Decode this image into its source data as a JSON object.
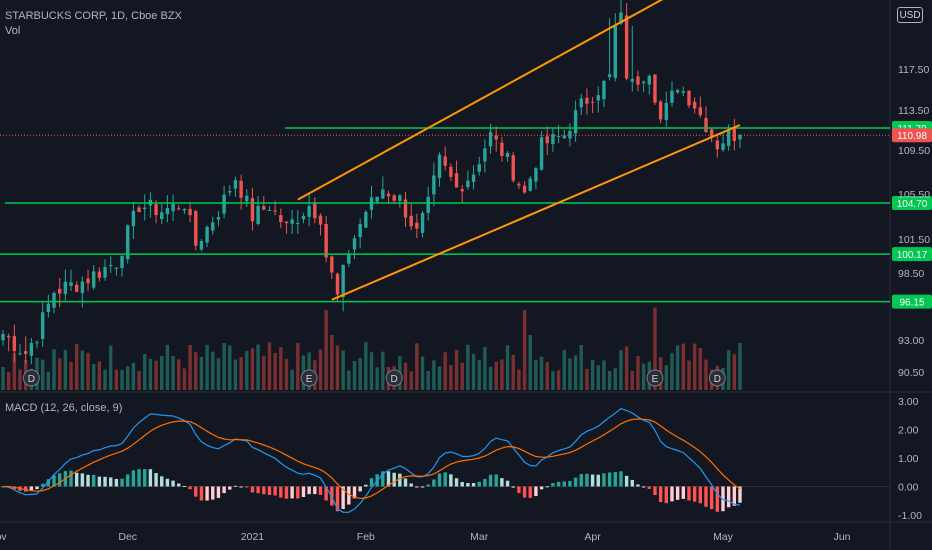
{
  "header": {
    "title": "STARBUCKS CORP, 1D, Cboe BZX",
    "volume_label": "Vol",
    "currency": "USD"
  },
  "macd": {
    "label": "MACD (12, 26, close, 9)",
    "y_ticks": [
      "3.00",
      "2.00",
      "1.00",
      "0.00",
      "-1.00"
    ]
  },
  "colors": {
    "background": "#131722",
    "up": "#26a69a",
    "down": "#ef5350",
    "level_line": "#00c853",
    "channel": "#ff9800",
    "macd_line": "#2196f3",
    "signal_line": "#ff6d00"
  },
  "chart_data": {
    "type": "candlestick",
    "y_ticks": [
      "117.50",
      "113.50",
      "109.50",
      "105.50",
      "101.50",
      "98.50",
      "93.00",
      "90.50"
    ],
    "x_ticks": [
      "Nov",
      "Dec",
      "2021",
      "Feb",
      "Mar",
      "Apr",
      "May",
      "Jun"
    ],
    "levels": [
      111.7,
      104.7,
      100.17,
      96.15
    ],
    "level_labels": [
      "111.70",
      "104.70",
      "100.17",
      "96.15"
    ],
    "last_price": 110.98,
    "last_price_label": "110.98",
    "price_scale": [
      {
        "v": 117.5,
        "y": 69
      },
      {
        "v": 113.5,
        "y": 110
      },
      {
        "v": 109.5,
        "y": 150
      },
      {
        "v": 105.5,
        "y": 194
      },
      {
        "v": 101.5,
        "y": 239
      },
      {
        "v": 98.5,
        "y": 273
      },
      {
        "v": 93.0,
        "y": 340
      },
      {
        "v": 90.5,
        "y": 372
      }
    ],
    "macd_scale": [
      {
        "v": 3.0,
        "y": 401
      },
      {
        "v": -1.0,
        "y": 515
      }
    ],
    "x_scale": [
      {
        "v": 0,
        "y": 3
      },
      {
        "v": 130,
        "y": 740
      }
    ],
    "key_points": [
      {
        "i": 0,
        "p": 93.5
      },
      {
        "i": 4,
        "p": 92
      },
      {
        "i": 6,
        "p": 93.5
      },
      {
        "i": 9,
        "p": 97
      },
      {
        "i": 14,
        "p": 97.8
      },
      {
        "i": 20,
        "p": 99.5
      },
      {
        "i": 24,
        "p": 104.5
      },
      {
        "i": 28,
        "p": 104
      },
      {
        "i": 32,
        "p": 104.7
      },
      {
        "i": 34,
        "p": 101
      },
      {
        "i": 38,
        "p": 104
      },
      {
        "i": 41,
        "p": 107
      },
      {
        "i": 44,
        "p": 103.5
      },
      {
        "i": 47,
        "p": 104.5
      },
      {
        "i": 50,
        "p": 102.5
      },
      {
        "i": 54,
        "p": 104.5
      },
      {
        "i": 56,
        "p": 103.5
      },
      {
        "i": 57,
        "p": 100
      },
      {
        "i": 59,
        "p": 96.5
      },
      {
        "i": 61,
        "p": 100.5
      },
      {
        "i": 64,
        "p": 104
      },
      {
        "i": 67,
        "p": 106
      },
      {
        "i": 70,
        "p": 105
      },
      {
        "i": 73,
        "p": 102
      },
      {
        "i": 75,
        "p": 104.5
      },
      {
        "i": 77,
        "p": 108.5
      },
      {
        "i": 80,
        "p": 106
      },
      {
        "i": 83,
        "p": 107.5
      },
      {
        "i": 86,
        "p": 111
      },
      {
        "i": 89,
        "p": 108.5
      },
      {
        "i": 92,
        "p": 105.5
      },
      {
        "i": 95,
        "p": 110
      },
      {
        "i": 99,
        "p": 111
      },
      {
        "i": 102,
        "p": 114
      },
      {
        "i": 106,
        "p": 116
      },
      {
        "i": 109,
        "p": 118
      },
      {
        "i": 111,
        "p": 116
      },
      {
        "i": 114,
        "p": 117.5
      },
      {
        "i": 116,
        "p": 112.5
      },
      {
        "i": 119,
        "p": 116
      },
      {
        "i": 122,
        "p": 114
      },
      {
        "i": 124,
        "p": 112
      },
      {
        "i": 126,
        "p": 110
      },
      {
        "i": 128,
        "p": 111
      },
      {
        "i": 130,
        "p": 110.98
      }
    ],
    "channel": [
      {
        "x1": 52,
        "p1": 105,
        "x2": 122,
        "p2": 121
      },
      {
        "x1": 58,
        "p1": 96.3,
        "x2": 130,
        "p2": 112
      }
    ],
    "markers": [
      {
        "i": 5,
        "label": "D",
        "type": "dividend"
      },
      {
        "i": 54,
        "label": "E",
        "type": "earnings"
      },
      {
        "i": 69,
        "label": "D",
        "type": "dividend"
      },
      {
        "i": 115,
        "label": "E",
        "type": "earnings"
      },
      {
        "i": 126,
        "label": "D",
        "type": "dividend"
      }
    ]
  }
}
